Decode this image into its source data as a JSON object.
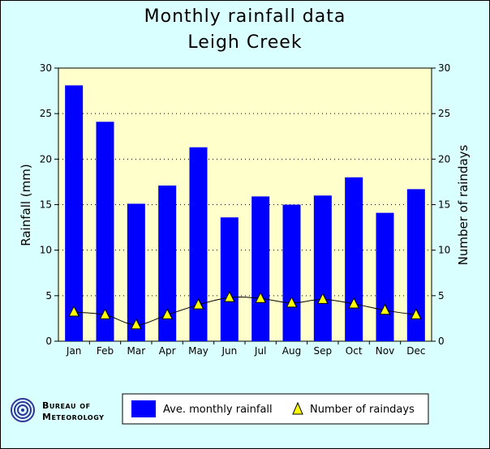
{
  "page": {
    "title_line_1": "Monthly rainfall data",
    "title_line_2": "Leigh Creek",
    "background_color": "#d9ffff",
    "plot_background_color": "#ffffcc"
  },
  "logo": {
    "line_1": "Bureau of",
    "line_2": "Meteorology",
    "icon": "bom-swirl-icon"
  },
  "legend": {
    "rainfall_label": "Ave. monthly rainfall",
    "raindays_label": "Number of raindays"
  },
  "chart_data": {
    "type": "bar",
    "categories": [
      "Jan",
      "Feb",
      "Mar",
      "Apr",
      "May",
      "Jun",
      "Jul",
      "Aug",
      "Sep",
      "Oct",
      "Nov",
      "Dec"
    ],
    "series": [
      {
        "name": "Ave. monthly rainfall",
        "type": "bar",
        "axis": "left",
        "color": "#0000ff",
        "values": [
          28.1,
          24.1,
          15.1,
          17.1,
          21.3,
          13.6,
          15.9,
          15.0,
          16.0,
          18.0,
          14.1,
          16.7
        ]
      },
      {
        "name": "Number of raindays",
        "type": "line",
        "axis": "right",
        "marker": "triangle",
        "marker_color": "#ffff00",
        "values": [
          3.2,
          2.9,
          1.8,
          2.9,
          4.0,
          4.8,
          4.7,
          4.2,
          4.6,
          4.1,
          3.4,
          2.9
        ]
      }
    ],
    "ylabel_left": "Rainfall (mm)",
    "ylabel_right": "Number of raindays",
    "ylim_left": [
      0,
      30
    ],
    "ylim_right": [
      0,
      30
    ],
    "yticks": [
      "0",
      "5",
      "10",
      "15",
      "20",
      "25",
      "30"
    ],
    "grid": "horizontal-dotted",
    "legend_position": "bottom-center"
  }
}
